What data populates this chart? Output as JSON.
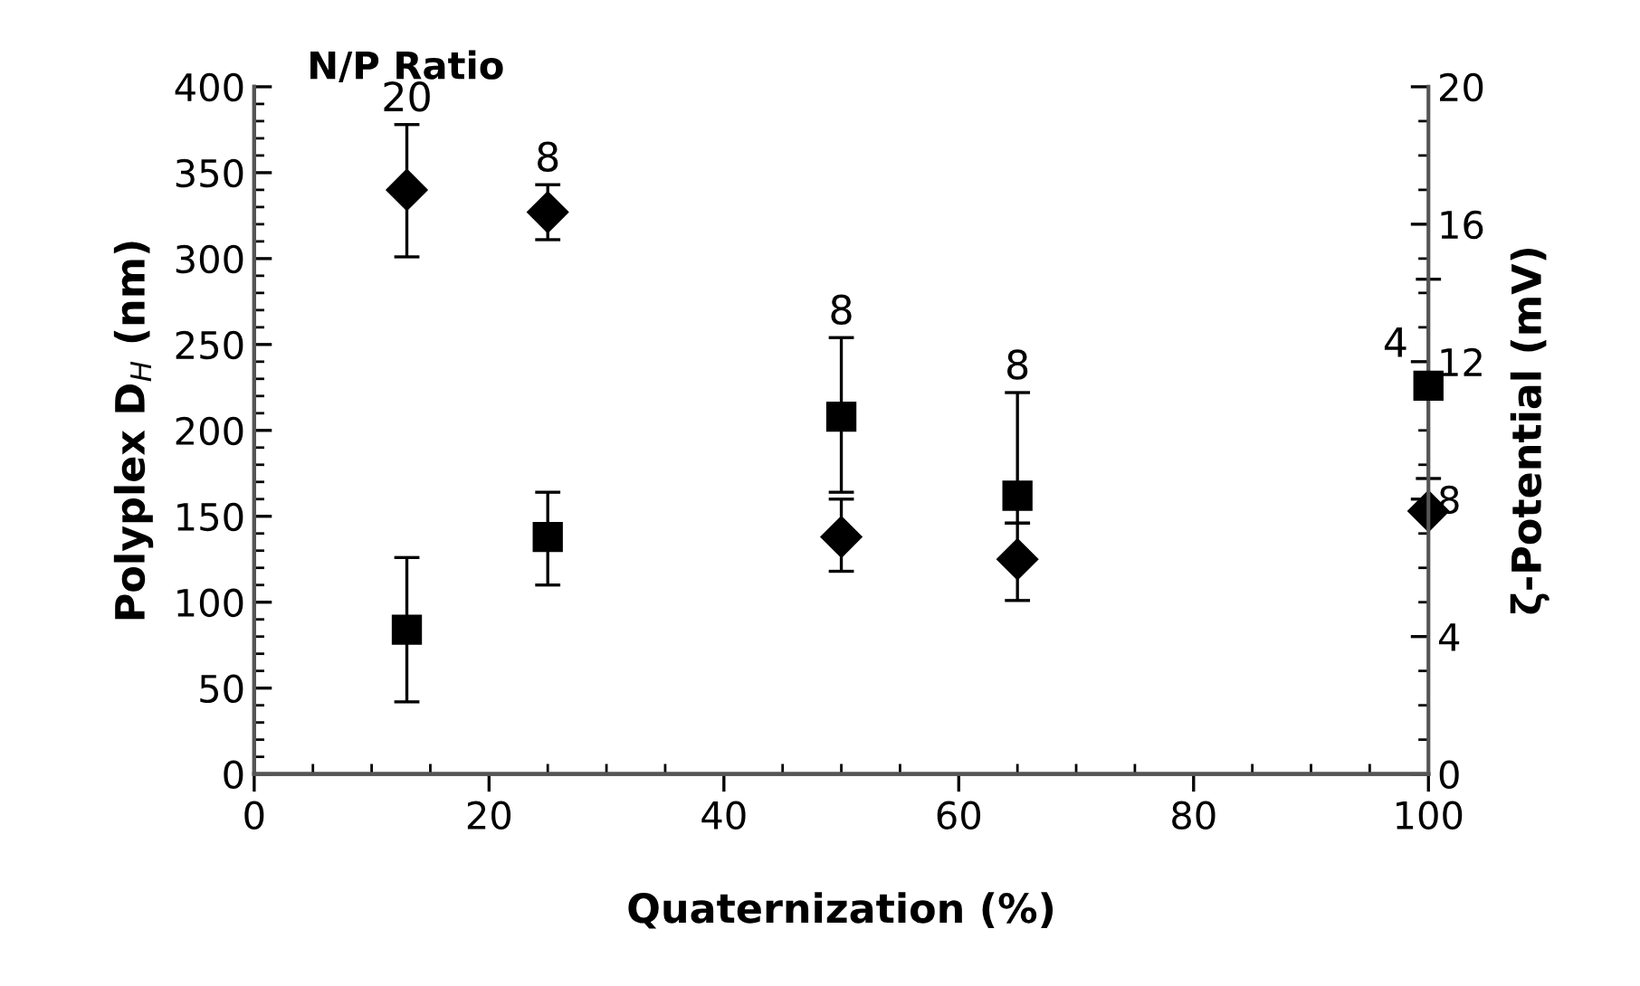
{
  "chart_data": {
    "type": "scatter",
    "xlabel": "Quaternization (%)",
    "ylabel": "Polyplex D$_{H}$ (nm)",
    "y2label": "ζ-Potential (mV)",
    "grid": false,
    "legend": false,
    "series": [
      {
        "color": "#000000",
        "marker": "diamond",
        "x": [
          13,
          25,
          50,
          65,
          100
        ],
        "values": [
          340,
          327,
          138,
          125,
          153
        ],
        "errors": [
          [
            301,
            378
          ],
          [
            311,
            343
          ],
          [
            118,
            160
          ],
          [
            101,
            146
          ],
          null
        ]
      },
      {
        "color": "#000000",
        "marker": "square",
        "axis": "y2",
        "x": [
          13,
          25,
          50,
          65,
          100
        ],
        "values": [
          4.2,
          6.9,
          10.4,
          8.1,
          11.3
        ],
        "errors": [
          [
            2.1,
            6.3
          ],
          [
            5.5,
            8.2
          ],
          [
            8.2,
            12.7
          ],
          [
            7.3,
            11.1
          ],
          [
            8.6,
            14.4
          ]
        ]
      }
    ],
    "annotations": [
      "N/P Ratio",
      {
        "text": "20",
        "x": 13,
        "y": 378
      },
      {
        "text": "8",
        "x": 25,
        "y": 343
      },
      {
        "text": "8",
        "x": 50,
        "y": 254
      },
      {
        "text": "8",
        "x": 65,
        "y": 222
      },
      {
        "text": "4",
        "x": 100,
        "y": 235
      }
    ],
    "xlim": [
      0,
      100
    ],
    "ylim": [
      0,
      400
    ],
    "y2lim": [
      0,
      20
    ],
    "xticks": [
      0,
      {
        "value": 5,
        "label": null
      },
      20,
      {
        "value": 10,
        "label": null
      },
      {
        "value": 15,
        "label": null
      },
      {
        "value": 25,
        "label": null
      },
      {
        "value": 30,
        "label": null
      },
      {
        "value": 35,
        "label": null
      },
      40,
      {
        "value": 45,
        "label": null
      },
      {
        "value": 50,
        "label": null
      },
      {
        "value": 55,
        "label": null
      },
      60,
      {
        "value": 65,
        "label": null
      },
      {
        "value": 70,
        "label": null
      },
      {
        "value": 75,
        "label": null
      },
      80,
      {
        "value": 85,
        "label": null
      },
      {
        "value": 90,
        "label": null
      },
      {
        "value": 95,
        "label": null
      },
      100
    ],
    "yticks": [
      0,
      50,
      100,
      150,
      200,
      250,
      300,
      350,
      400,
      {
        "value": 10,
        "label": null
      },
      {
        "value": 20,
        "label": null
      },
      {
        "value": 30,
        "label": null
      },
      {
        "value": 40,
        "label": null
      },
      {
        "value": 60,
        "label": null
      },
      {
        "value": 70,
        "label": null
      },
      {
        "value": 80,
        "label": null
      },
      {
        "value": 90,
        "label": null
      },
      {
        "value": 110,
        "label": null
      },
      {
        "value": 120,
        "label": null
      },
      {
        "value": 130,
        "label": null
      },
      {
        "value": 140,
        "label": null
      },
      {
        "value": 160,
        "label": null
      },
      {
        "value": 170,
        "label": null
      },
      {
        "value": 180,
        "label": null
      },
      {
        "value": 190,
        "label": null
      },
      {
        "value": 210,
        "label": null
      },
      {
        "value": 220,
        "label": null
      },
      {
        "value": 230,
        "label": null
      },
      {
        "value": 240,
        "label": null
      },
      {
        "value": 260,
        "label": null
      },
      {
        "value": 270,
        "label": null
      },
      {
        "value": 280,
        "label": null
      },
      {
        "value": 290,
        "label": null
      },
      {
        "value": 310,
        "label": null
      },
      {
        "value": 320,
        "label": null
      },
      {
        "value": 330,
        "label": null
      },
      {
        "value": 340,
        "label": null
      },
      {
        "value": 360,
        "label": null
      },
      {
        "value": 370,
        "label": null
      },
      {
        "value": 380,
        "label": null
      },
      {
        "value": 390,
        "label": null
      }
    ],
    "y2ticks": [
      0,
      4,
      8,
      12,
      16,
      20,
      {
        "value": 1,
        "label": null
      },
      {
        "value": 2,
        "label": null
      },
      {
        "value": 3,
        "label": null
      },
      {
        "value": 5,
        "label": null
      },
      {
        "value": 6,
        "label": null
      },
      {
        "value": 7,
        "label": null
      },
      {
        "value": 9,
        "label": null
      },
      {
        "value": 10,
        "label": null
      },
      {
        "value": 11,
        "label": null
      },
      {
        "value": 13,
        "label": null
      },
      {
        "value": 14,
        "label": null
      },
      {
        "value": 15,
        "label": null
      },
      {
        "value": 17,
        "label": null
      },
      {
        "value": 18,
        "label": null
      },
      {
        "value": 19,
        "label": null
      }
    ]
  }
}
